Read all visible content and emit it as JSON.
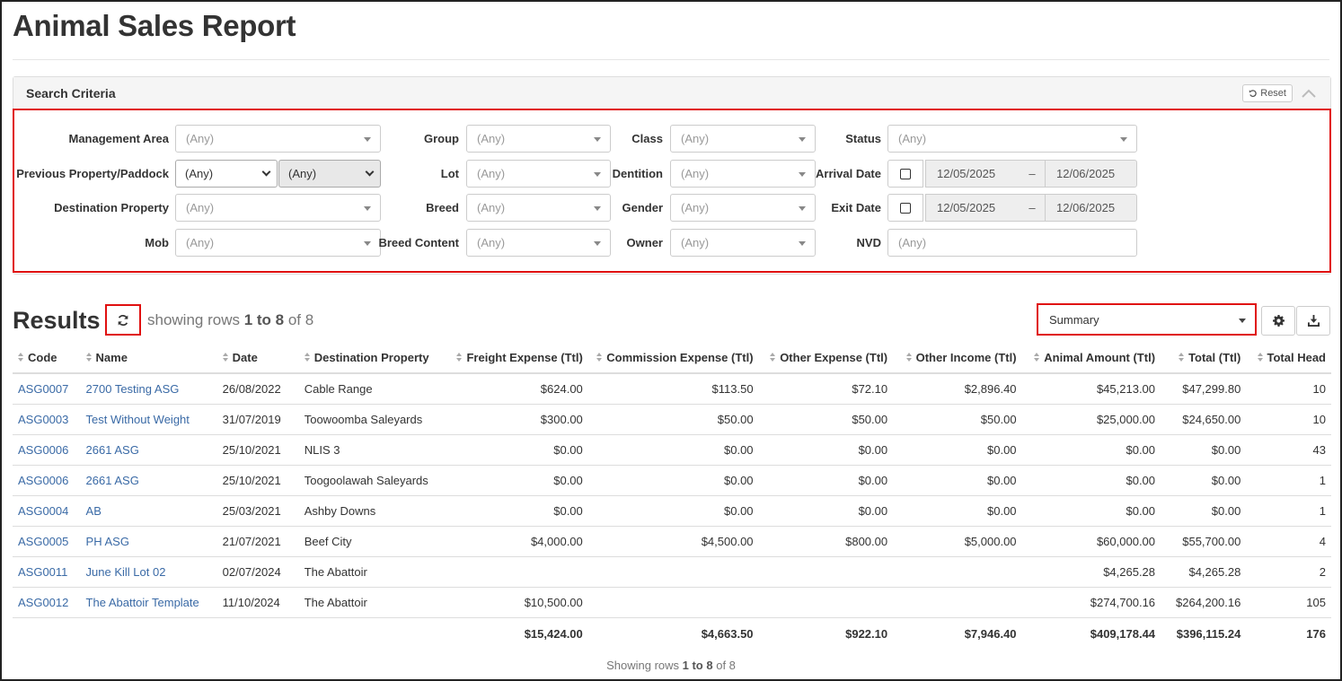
{
  "page": {
    "title": "Animal Sales Report"
  },
  "search": {
    "title": "Search Criteria",
    "reset_label": "Reset",
    "management_area": {
      "label": "Management Area",
      "value": "(Any)"
    },
    "previous_property": {
      "label": "Previous Property/Paddock",
      "value": "(Any)",
      "paddock_value": "(Any)"
    },
    "destination_property": {
      "label": "Destination Property",
      "value": "(Any)"
    },
    "mob": {
      "label": "Mob",
      "value": "(Any)"
    },
    "group": {
      "label": "Group",
      "value": "(Any)"
    },
    "lot": {
      "label": "Lot",
      "value": "(Any)"
    },
    "breed": {
      "label": "Breed",
      "value": "(Any)"
    },
    "breed_content": {
      "label": "Breed Content",
      "value": "(Any)"
    },
    "class": {
      "label": "Class",
      "value": "(Any)"
    },
    "dentition": {
      "label": "Dentition",
      "value": "(Any)"
    },
    "gender": {
      "label": "Gender",
      "value": "(Any)"
    },
    "owner": {
      "label": "Owner",
      "value": "(Any)"
    },
    "status": {
      "label": "Status",
      "value": "(Any)"
    },
    "arrival_date": {
      "label": "Arrival Date",
      "from": "12/05/2025",
      "to": "12/06/2025",
      "sep": "–"
    },
    "exit_date": {
      "label": "Exit Date",
      "from": "12/05/2025",
      "to": "12/06/2025",
      "sep": "–"
    },
    "nvd": {
      "label": "NVD",
      "placeholder": "(Any)"
    }
  },
  "results": {
    "title": "Results",
    "showing_prefix": "showing rows ",
    "showing_range": "1 to 8",
    "showing_suffix": " of 8",
    "view_select": "Summary",
    "columns": [
      "Code",
      "Name",
      "Date",
      "Destination Property",
      "Freight Expense (Ttl)",
      "Commission Expense (Ttl)",
      "Other Expense (Ttl)",
      "Other Income (Ttl)",
      "Animal Amount (Ttl)",
      "Total (Ttl)",
      "Total Head"
    ],
    "rows": [
      [
        "ASG0007",
        "2700 Testing ASG",
        "26/08/2022",
        "Cable Range",
        "$624.00",
        "$113.50",
        "$72.10",
        "$2,896.40",
        "$45,213.00",
        "$47,299.80",
        "10"
      ],
      [
        "ASG0003",
        "Test Without Weight",
        "31/07/2019",
        "Toowoomba Saleyards",
        "$300.00",
        "$50.00",
        "$50.00",
        "$50.00",
        "$25,000.00",
        "$24,650.00",
        "10"
      ],
      [
        "ASG0006",
        "2661 ASG",
        "25/10/2021",
        "NLIS 3",
        "$0.00",
        "$0.00",
        "$0.00",
        "$0.00",
        "$0.00",
        "$0.00",
        "43"
      ],
      [
        "ASG0006",
        "2661 ASG",
        "25/10/2021",
        "Toogoolawah Saleyards",
        "$0.00",
        "$0.00",
        "$0.00",
        "$0.00",
        "$0.00",
        "$0.00",
        "1"
      ],
      [
        "ASG0004",
        "AB",
        "25/03/2021",
        "Ashby Downs",
        "$0.00",
        "$0.00",
        "$0.00",
        "$0.00",
        "$0.00",
        "$0.00",
        "1"
      ],
      [
        "ASG0005",
        "PH ASG",
        "21/07/2021",
        "Beef City",
        "$4,000.00",
        "$4,500.00",
        "$800.00",
        "$5,000.00",
        "$60,000.00",
        "$55,700.00",
        "4"
      ],
      [
        "ASG0011",
        "June Kill Lot 02",
        "02/07/2024",
        "The Abattoir",
        "",
        "",
        "",
        "",
        "$4,265.28",
        "$4,265.28",
        "2"
      ],
      [
        "ASG0012",
        "The Abattoir Template",
        "11/10/2024",
        "The Abattoir",
        "$10,500.00",
        "",
        "",
        "",
        "$274,700.16",
        "$264,200.16",
        "105"
      ]
    ],
    "totals": [
      "",
      "",
      "",
      "",
      "$15,424.00",
      "$4,663.50",
      "$922.10",
      "$7,946.40",
      "$409,178.44",
      "$396,115.24",
      "176"
    ],
    "footer_prefix": "Showing rows ",
    "footer_range": "1 to 8",
    "footer_suffix": " of 8"
  }
}
